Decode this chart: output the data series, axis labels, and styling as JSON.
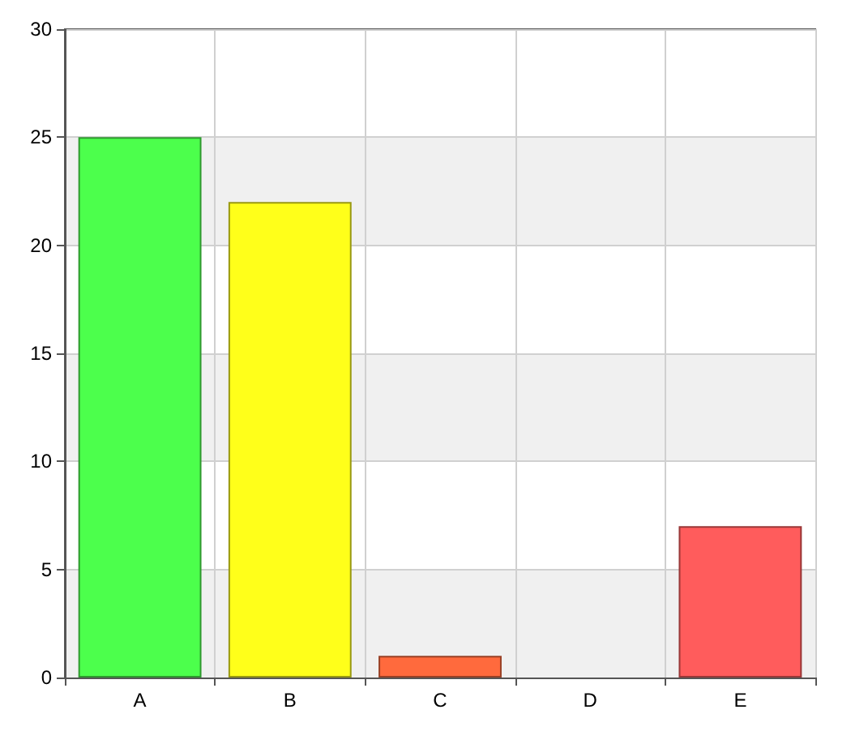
{
  "chart_data": {
    "type": "bar",
    "categories": [
      "A",
      "B",
      "C",
      "D",
      "E"
    ],
    "values": [
      25,
      22,
      1,
      0,
      7
    ],
    "colors": [
      "#4cff4c",
      "#ffff1a",
      "#ff6a3d",
      null,
      "#ff5c5c"
    ],
    "ylim": [
      0,
      30
    ],
    "yticks": [
      0,
      5,
      10,
      15,
      20,
      25,
      30
    ],
    "grid": true
  }
}
